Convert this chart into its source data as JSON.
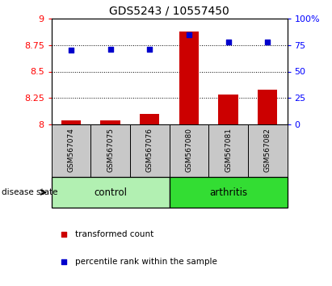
{
  "title": "GDS5243 / 10557450",
  "samples": [
    "GSM567074",
    "GSM567075",
    "GSM567076",
    "GSM567080",
    "GSM567081",
    "GSM567082"
  ],
  "transformed_count": [
    8.04,
    8.04,
    8.1,
    8.88,
    8.28,
    8.33
  ],
  "percentile_rank": [
    70,
    71,
    71,
    85,
    78,
    78
  ],
  "ylim_left": [
    8.0,
    9.0
  ],
  "ylim_right": [
    0,
    100
  ],
  "yticks_left": [
    8.0,
    8.25,
    8.5,
    8.75,
    9.0
  ],
  "yticks_right": [
    0,
    25,
    50,
    75,
    100
  ],
  "ytick_labels_left": [
    "8",
    "8.25",
    "8.5",
    "8.75",
    "9"
  ],
  "ytick_labels_right": [
    "0",
    "25",
    "50",
    "75",
    "100%"
  ],
  "groups": [
    {
      "label": "control",
      "start": 0,
      "end": 2,
      "color": "#b2f0b2"
    },
    {
      "label": "arthritis",
      "start": 3,
      "end": 5,
      "color": "#33dd33"
    }
  ],
  "bar_color": "#cc0000",
  "dot_color": "#0000cc",
  "bar_width": 0.5,
  "disease_state_label": "disease state",
  "legend_items": [
    {
      "label": "transformed count",
      "color": "#cc0000"
    },
    {
      "label": "percentile rank within the sample",
      "color": "#0000cc"
    }
  ],
  "sample_box_color": "#c8c8c8",
  "title_fontsize": 10,
  "tick_fontsize": 8,
  "label_fontsize": 7.5
}
